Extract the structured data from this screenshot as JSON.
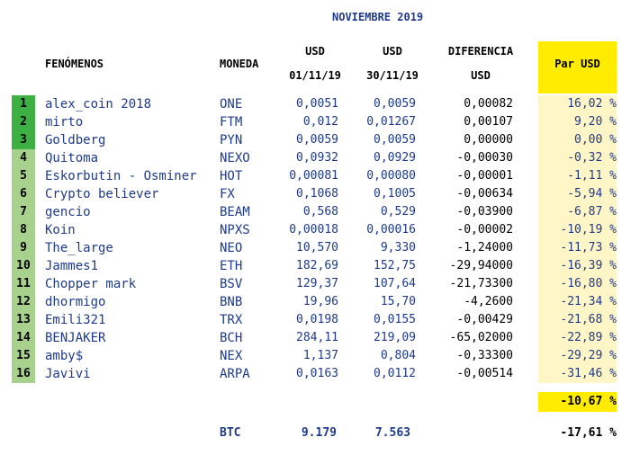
{
  "title": "NOVIEMBRE 2019",
  "headers": {
    "fenomenos": "FENÓMENOS",
    "moneda": "MONEDA",
    "usd1_line1": "USD",
    "usd1_line2": "01/11/19",
    "usd2_line1": "USD",
    "usd2_line2": "30/11/19",
    "diff_line1": "DIFERENCIA",
    "diff_line2": "USD",
    "par_usd": "Par USD"
  },
  "colors": {
    "rank_top3": "#3cb043",
    "rank_rest": "#a9d18e",
    "highlight_yellow": "#ffec00",
    "pct_light_yellow": "#fff6c8",
    "text_navy": "#1f3a8a"
  },
  "rows": [
    {
      "rank": "1",
      "name": "alex_coin 2018",
      "coin": "ONE",
      "usd_start": "0,0051",
      "usd_end": "0,0059",
      "diff": "0,00082",
      "pct": "16,02 %"
    },
    {
      "rank": "2",
      "name": "mirto",
      "coin": "FTM",
      "usd_start": "0,012",
      "usd_end": "0,01267",
      "diff": "0,00107",
      "pct": "9,20 %"
    },
    {
      "rank": "3",
      "name": "Goldberg",
      "coin": "PYN",
      "usd_start": "0,0059",
      "usd_end": "0,0059",
      "diff": "0,00000",
      "pct": "0,00 %"
    },
    {
      "rank": "4",
      "name": "Quitoma",
      "coin": "NEXO",
      "usd_start": "0,0932",
      "usd_end": "0,0929",
      "diff": "-0,00030",
      "pct": "-0,32 %"
    },
    {
      "rank": "5",
      "name": "Eskorbutin - Osminer",
      "coin": "HOT",
      "usd_start": "0,00081",
      "usd_end": "0,00080",
      "diff": "-0,00001",
      "pct": "-1,11 %"
    },
    {
      "rank": "6",
      "name": "Crypto believer",
      "coin": "FX",
      "usd_start": "0,1068",
      "usd_end": "0,1005",
      "diff": "-0,00634",
      "pct": "-5,94 %"
    },
    {
      "rank": "7",
      "name": "gencio",
      "coin": "BEAM",
      "usd_start": "0,568",
      "usd_end": "0,529",
      "diff": "-0,03900",
      "pct": "-6,87 %"
    },
    {
      "rank": "8",
      "name": "Koin",
      "coin": "NPXS",
      "usd_start": "0,00018",
      "usd_end": "0,00016",
      "diff": "-0,00002",
      "pct": "-10,19 %"
    },
    {
      "rank": "9",
      "name": "The_large",
      "coin": "NEO",
      "usd_start": "10,570",
      "usd_end": "9,330",
      "diff": "-1,24000",
      "pct": "-11,73 %"
    },
    {
      "rank": "10",
      "name": "Jammes1",
      "coin": "ETH",
      "usd_start": "182,69",
      "usd_end": "152,75",
      "diff": "-29,94000",
      "pct": "-16,39 %"
    },
    {
      "rank": "11",
      "name": "Chopper mark",
      "coin": "BSV",
      "usd_start": "129,37",
      "usd_end": "107,64",
      "diff": "-21,73300",
      "pct": "-16,80 %"
    },
    {
      "rank": "12",
      "name": "dhormigo",
      "coin": "BNB",
      "usd_start": "19,96",
      "usd_end": "15,70",
      "diff": "-4,2600",
      "pct": "-21,34 %"
    },
    {
      "rank": "13",
      "name": "Emili321",
      "coin": "TRX",
      "usd_start": "0,0198",
      "usd_end": "0,0155",
      "diff": "-0,00429",
      "pct": "-21,68 %"
    },
    {
      "rank": "14",
      "name": "BENJAKER",
      "coin": "BCH",
      "usd_start": "284,11",
      "usd_end": "219,09",
      "diff": "-65,02000",
      "pct": "-22,89 %"
    },
    {
      "rank": "15",
      "name": "amby$",
      "coin": "NEX",
      "usd_start": "1,137",
      "usd_end": "0,804",
      "diff": "-0,33300",
      "pct": "-29,29 %"
    },
    {
      "rank": "16",
      "name": "Javivi",
      "coin": "ARPA",
      "usd_start": "0,0163",
      "usd_end": "0,0112",
      "diff": "-0,00514",
      "pct": "-31,46 %"
    }
  ],
  "total_pct": "-10,67 %",
  "btc": {
    "label": "BTC",
    "usd_start": "9.179",
    "usd_end": "7.563",
    "pct": "-17,61 %"
  }
}
